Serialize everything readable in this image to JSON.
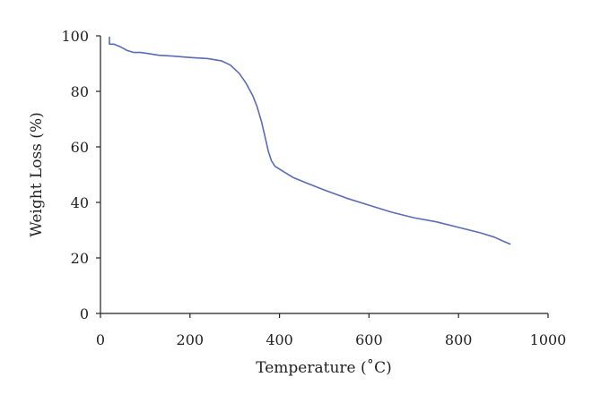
{
  "chart_data": {
    "type": "line",
    "title": "",
    "xlabel": "Temperature (˚C)",
    "ylabel": "Weight Loss (%)",
    "xlim": [
      0,
      1000
    ],
    "ylim": [
      0,
      100
    ],
    "xticks": [
      0,
      200,
      400,
      600,
      800,
      1000
    ],
    "yticks": [
      0,
      20,
      40,
      60,
      80,
      100
    ],
    "grid": false,
    "legend": "none",
    "series": [
      {
        "color": "#5b6bb5",
        "x": [
          20,
          20,
          30,
          45,
          60,
          75,
          90,
          110,
          130,
          160,
          200,
          240,
          270,
          290,
          310,
          325,
          340,
          350,
          360,
          368,
          375,
          382,
          390,
          400,
          410,
          430,
          460,
          500,
          550,
          600,
          650,
          700,
          750,
          800,
          850,
          880,
          900,
          915
        ],
        "y": [
          99.5,
          97,
          97,
          96,
          94.7,
          94,
          94,
          93.5,
          93,
          92.7,
          92.2,
          91.8,
          91,
          89.5,
          86.5,
          83,
          78.5,
          74.5,
          69,
          63.5,
          58.5,
          55,
          53,
          52,
          51,
          49,
          47,
          44.5,
          41.5,
          39,
          36.5,
          34.5,
          33,
          31,
          29,
          27.5,
          26,
          25
        ]
      }
    ]
  }
}
